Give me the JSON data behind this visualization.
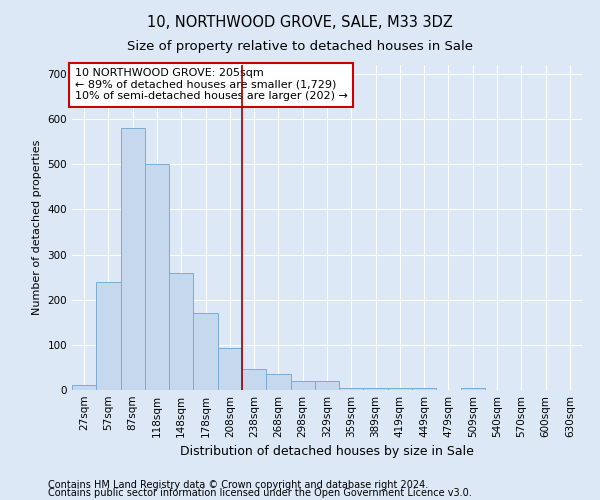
{
  "title": "10, NORTHWOOD GROVE, SALE, M33 3DZ",
  "subtitle": "Size of property relative to detached houses in Sale",
  "xlabel": "Distribution of detached houses by size in Sale",
  "ylabel": "Number of detached properties",
  "footnote1": "Contains HM Land Registry data © Crown copyright and database right 2024.",
  "footnote2": "Contains public sector information licensed under the Open Government Licence v3.0.",
  "annotation_line1": "10 NORTHWOOD GROVE: 205sqm",
  "annotation_line2": "← 89% of detached houses are smaller (1,729)",
  "annotation_line3": "10% of semi-detached houses are larger (202) →",
  "bin_labels": [
    "27sqm",
    "57sqm",
    "87sqm",
    "118sqm",
    "148sqm",
    "178sqm",
    "208sqm",
    "238sqm",
    "268sqm",
    "298sqm",
    "329sqm",
    "359sqm",
    "389sqm",
    "419sqm",
    "449sqm",
    "479sqm",
    "509sqm",
    "540sqm",
    "570sqm",
    "600sqm",
    "630sqm"
  ],
  "bar_values": [
    10,
    240,
    580,
    500,
    260,
    170,
    93,
    47,
    35,
    20,
    20,
    5,
    5,
    5,
    5,
    0,
    5,
    0,
    0,
    0,
    0
  ],
  "bar_color": "#c5d8ee",
  "bar_edge_color": "#7aadd4",
  "vline_x_index": 7,
  "vline_color": "#990000",
  "background_color": "#dce8f5",
  "grid_color": "#ffffff",
  "ylim": [
    0,
    720
  ],
  "yticks": [
    0,
    100,
    200,
    300,
    400,
    500,
    600,
    700
  ],
  "box_facecolor": "#ffffff",
  "box_edgecolor": "#cc0000",
  "title_fontsize": 10.5,
  "subtitle_fontsize": 9.5,
  "xlabel_fontsize": 9,
  "ylabel_fontsize": 8,
  "tick_fontsize": 7.5,
  "annotation_fontsize": 8,
  "footnote_fontsize": 7
}
